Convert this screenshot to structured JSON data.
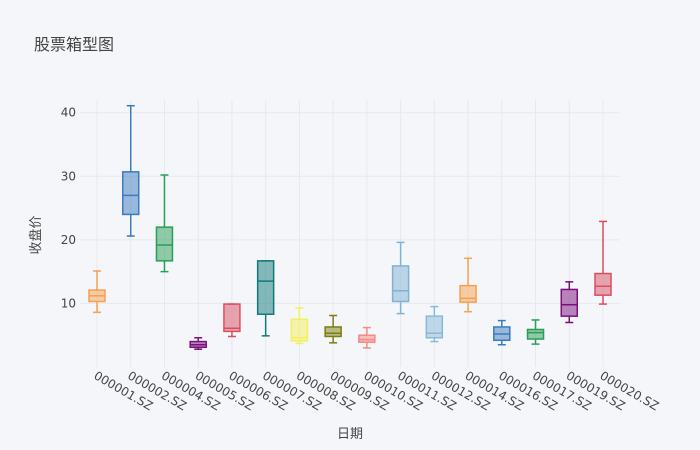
{
  "chart_data": {
    "type": "box",
    "title": "股票箱型图",
    "xlabel": "日期",
    "ylabel": "收盘价",
    "ylim": [
      0,
      42
    ],
    "yticks": [
      10,
      20,
      30,
      40
    ],
    "grid": true,
    "categories": [
      "000001.SZ",
      "000002.SZ",
      "000004.SZ",
      "000005.SZ",
      "000006.SZ",
      "000007.SZ",
      "000008.SZ",
      "000009.SZ",
      "000010.SZ",
      "000011.SZ",
      "000012.SZ",
      "000014.SZ",
      "000016.SZ",
      "000017.SZ",
      "000019.SZ",
      "000020.SZ"
    ],
    "series": [
      {
        "category": "000001.SZ",
        "min": 8.6,
        "q1": 10.3,
        "median": 11.2,
        "q3": 12.1,
        "max": 15.1,
        "color": "#f5a14f"
      },
      {
        "category": "000002.SZ",
        "min": 20.6,
        "q1": 24.0,
        "median": 27.0,
        "q3": 30.7,
        "max": 41.1,
        "color": "#3b7bbf"
      },
      {
        "category": "000004.SZ",
        "min": 15.0,
        "q1": 16.7,
        "median": 19.2,
        "q3": 22.0,
        "max": 30.2,
        "color": "#2a9d57"
      },
      {
        "category": "000005.SZ",
        "min": 2.8,
        "q1": 3.1,
        "median": 3.5,
        "q3": 4.0,
        "max": 4.6,
        "color": "#7b0f7b"
      },
      {
        "category": "000006.SZ",
        "min": 4.8,
        "q1": 5.6,
        "median": 6.1,
        "q3": 9.9,
        "max": 9.9,
        "color": "#d94f62"
      },
      {
        "category": "000007.SZ",
        "min": 4.9,
        "q1": 8.3,
        "median": 13.5,
        "q3": 16.7,
        "max": 16.7,
        "color": "#107a7a"
      },
      {
        "category": "000008.SZ",
        "min": 3.7,
        "q1": 4.1,
        "median": 4.6,
        "q3": 7.5,
        "max": 9.3,
        "color": "#f4f05c"
      },
      {
        "category": "000009.SZ",
        "min": 3.8,
        "q1": 4.8,
        "median": 5.3,
        "q3": 6.3,
        "max": 8.1,
        "color": "#7d7d10"
      },
      {
        "category": "000010.SZ",
        "min": 3.0,
        "q1": 3.9,
        "median": 4.3,
        "q3": 5.0,
        "max": 6.2,
        "color": "#f68a80"
      },
      {
        "category": "000011.SZ",
        "min": 8.4,
        "q1": 10.3,
        "median": 12.0,
        "q3": 15.9,
        "max": 19.6,
        "color": "#7fb2d6"
      },
      {
        "category": "000012.SZ",
        "min": 4.0,
        "q1": 4.6,
        "median": 5.3,
        "q3": 8.0,
        "max": 9.5,
        "color": "#8ab9d8"
      },
      {
        "category": "000014.SZ",
        "min": 8.7,
        "q1": 10.2,
        "median": 10.8,
        "q3": 12.8,
        "max": 17.1,
        "color": "#f5a14f"
      },
      {
        "category": "000016.SZ",
        "min": 3.5,
        "q1": 4.2,
        "median": 5.2,
        "q3": 6.3,
        "max": 7.3,
        "color": "#3b7bbf"
      },
      {
        "category": "000017.SZ",
        "min": 3.6,
        "q1": 4.4,
        "median": 5.4,
        "q3": 5.9,
        "max": 7.4,
        "color": "#2a9d57"
      },
      {
        "category": "000019.SZ",
        "min": 7.0,
        "q1": 8.0,
        "median": 9.8,
        "q3": 12.2,
        "max": 13.4,
        "color": "#7b0f7b"
      },
      {
        "category": "000020.SZ",
        "min": 9.9,
        "q1": 11.3,
        "median": 12.7,
        "q3": 14.7,
        "max": 22.9,
        "color": "#d94f62"
      }
    ]
  }
}
